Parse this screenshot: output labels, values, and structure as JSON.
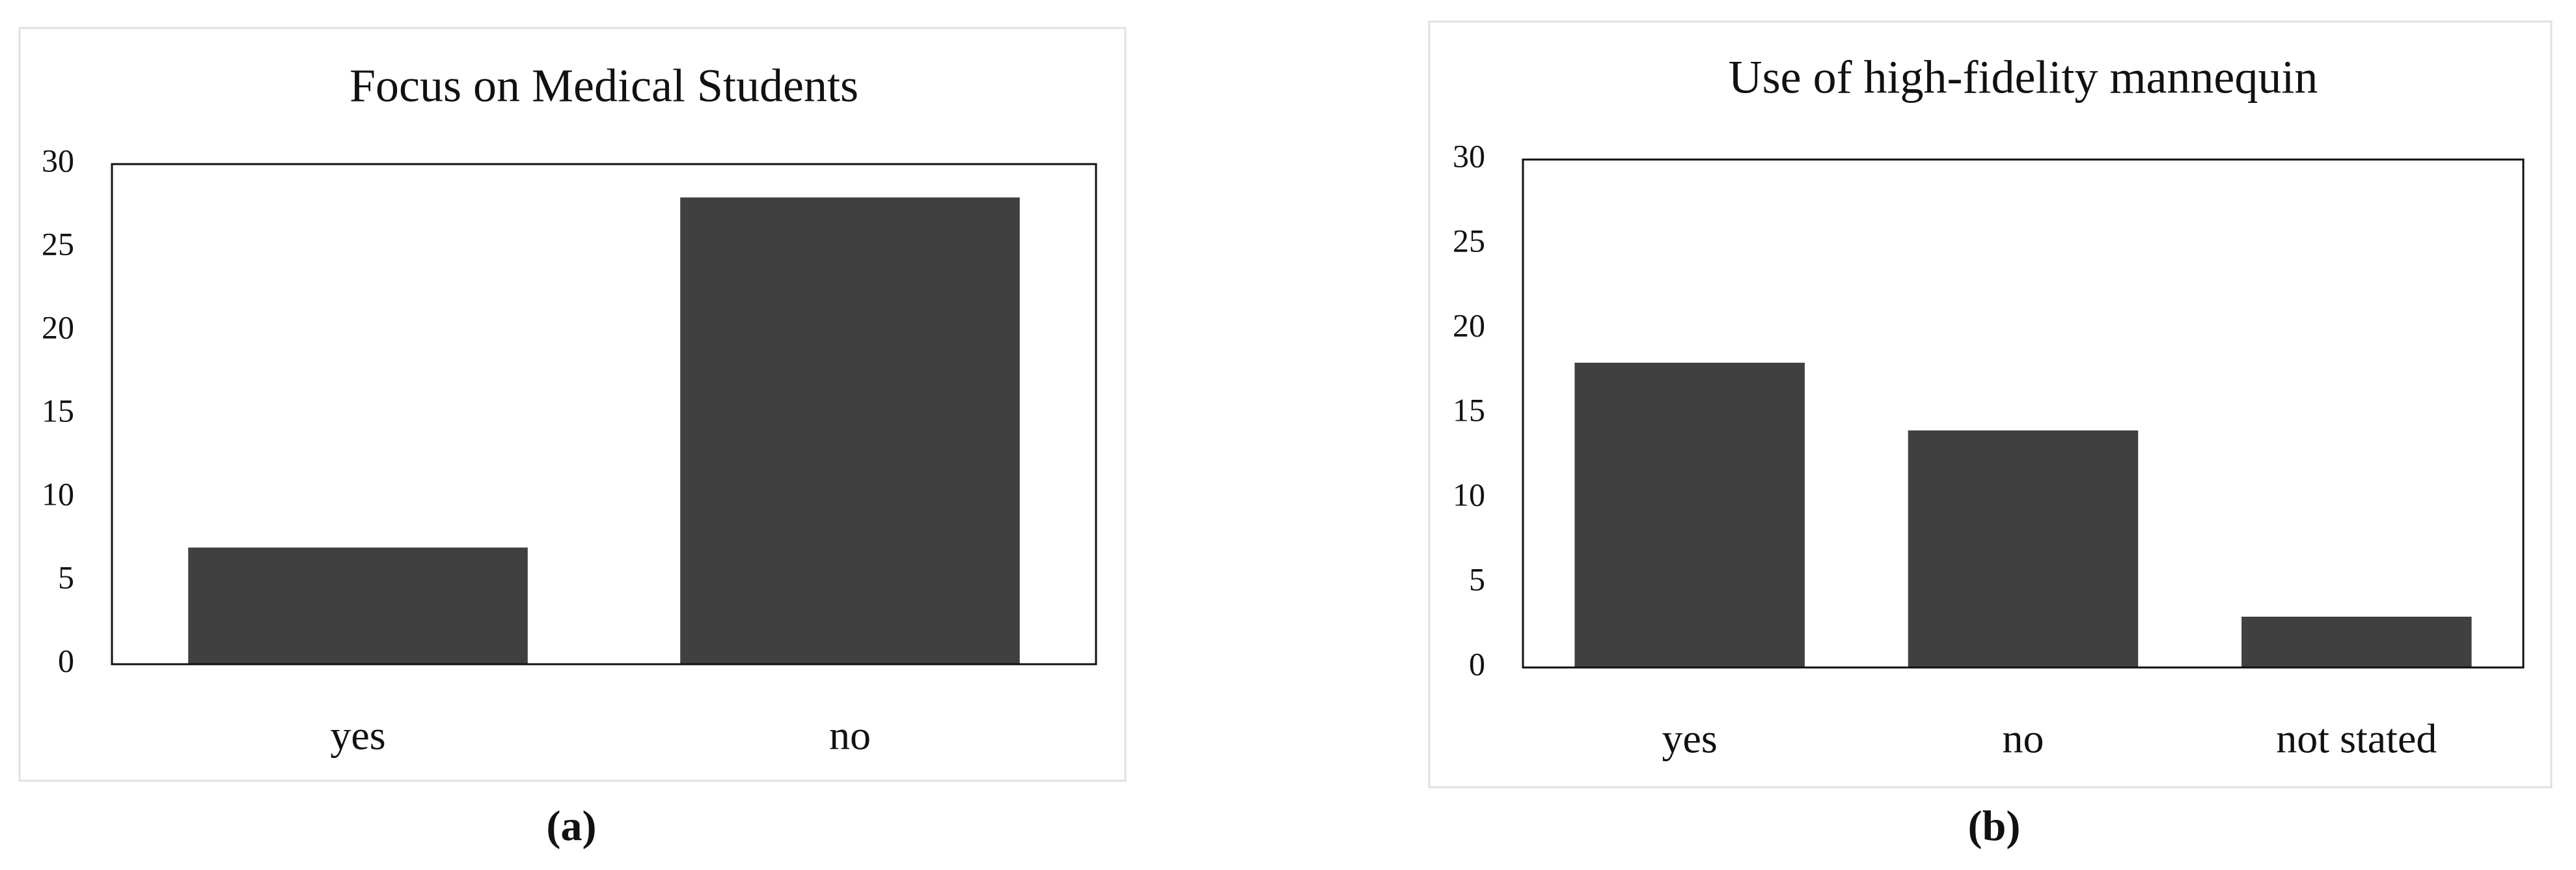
{
  "chart_data": [
    {
      "type": "bar",
      "title": "Focus on Medical Students",
      "caption": "(a)",
      "categories": [
        "yes",
        "no"
      ],
      "values": [
        7,
        28
      ],
      "color": "#404040",
      "ylim": [
        0,
        30
      ],
      "yticks": [
        0,
        5,
        10,
        15,
        20,
        25,
        30
      ],
      "grid": false
    },
    {
      "type": "bar",
      "title": "Use of high-fidelity mannequin",
      "caption": "(b)",
      "categories": [
        "yes",
        "no",
        "not stated"
      ],
      "values": [
        18,
        14,
        3
      ],
      "color": "#404040",
      "ylim": [
        0,
        30
      ],
      "yticks": [
        0,
        5,
        10,
        15,
        20,
        25,
        30
      ],
      "grid": false
    }
  ]
}
